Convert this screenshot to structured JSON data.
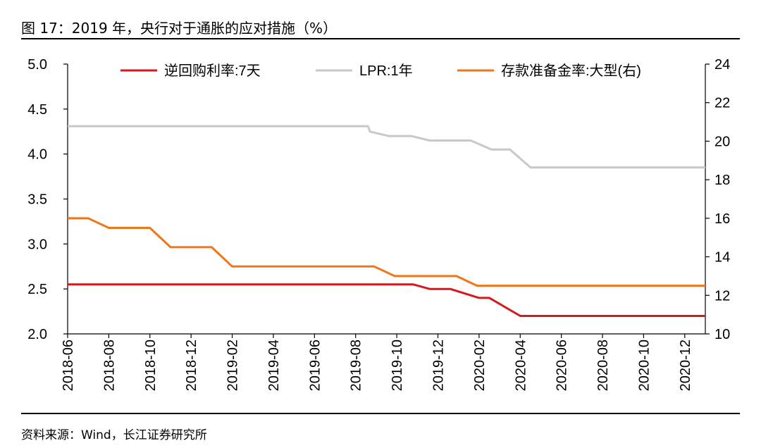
{
  "title": "图 17：2019 年，央行对于通胀的应对措施（%）",
  "source": "资料来源：Wind，长江证券研究所",
  "chart_data": {
    "type": "line",
    "x_ticks": [
      "2018-06",
      "2018-08",
      "2018-10",
      "2018-12",
      "2019-02",
      "2019-04",
      "2019-06",
      "2019-08",
      "2019-10",
      "2019-12",
      "2020-02",
      "2020-04",
      "2020-06",
      "2020-08",
      "2020-10",
      "2020-12"
    ],
    "x_range": [
      0,
      31
    ],
    "y_left": {
      "range": [
        2.0,
        5.0
      ],
      "ticks": [
        "2.0",
        "2.5",
        "3.0",
        "3.5",
        "4.0",
        "4.5",
        "5.0"
      ]
    },
    "y_right": {
      "range": [
        10,
        24
      ],
      "ticks": [
        "10",
        "12",
        "14",
        "16",
        "18",
        "20",
        "22",
        "24"
      ]
    },
    "legend_position": "top",
    "series": [
      {
        "name": "逆回购利率:7天",
        "axis": "left",
        "color": "#d7191c",
        "points": [
          [
            0,
            2.55
          ],
          [
            16.8,
            2.55
          ],
          [
            17.6,
            2.5
          ],
          [
            18.6,
            2.5
          ],
          [
            20.0,
            2.4
          ],
          [
            20.5,
            2.4
          ],
          [
            22.0,
            2.2
          ],
          [
            31,
            2.2
          ]
        ]
      },
      {
        "name": "LPR:1年",
        "axis": "left",
        "color": "#c8c8c8",
        "points": [
          [
            0,
            4.31
          ],
          [
            14.6,
            4.31
          ],
          [
            14.7,
            4.25
          ],
          [
            15.6,
            4.2
          ],
          [
            16.7,
            4.2
          ],
          [
            17.6,
            4.15
          ],
          [
            19.6,
            4.15
          ],
          [
            20.6,
            4.05
          ],
          [
            21.5,
            4.05
          ],
          [
            22.5,
            3.85
          ],
          [
            31,
            3.85
          ]
        ]
      },
      {
        "name": "存款准备金率:大型(右)",
        "axis": "right",
        "color": "#f0761e",
        "points": [
          [
            0,
            16.0
          ],
          [
            1.0,
            16.0
          ],
          [
            2.0,
            15.5
          ],
          [
            4.0,
            15.5
          ],
          [
            5.0,
            14.5
          ],
          [
            7.0,
            14.5
          ],
          [
            8.0,
            13.5
          ],
          [
            14.9,
            13.5
          ],
          [
            15.9,
            13.0
          ],
          [
            18.9,
            13.0
          ],
          [
            19.9,
            12.5
          ],
          [
            31,
            12.5
          ]
        ]
      }
    ]
  }
}
